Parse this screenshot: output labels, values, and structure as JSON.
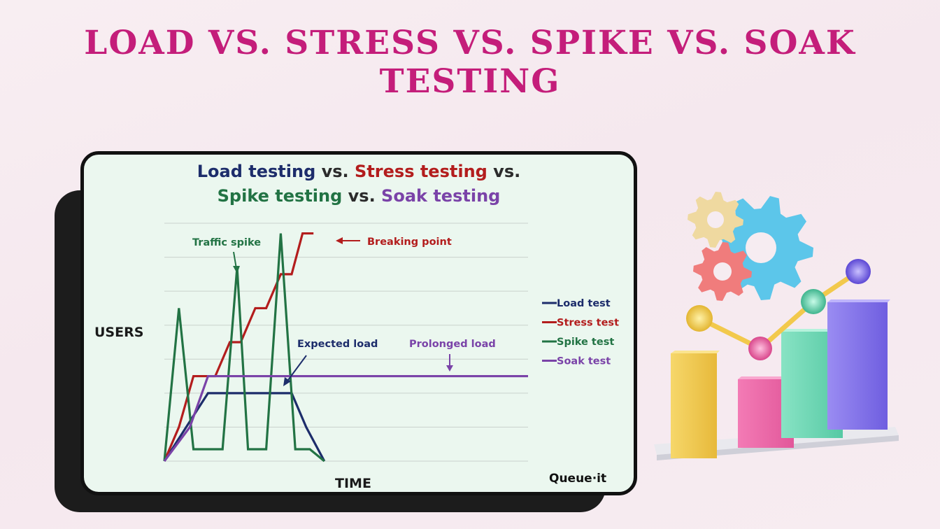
{
  "page": {
    "title": "LOAD VS. STRESS VS. SPIKE VS. SOAK TESTING"
  },
  "card": {
    "title_line1": [
      {
        "text": "Load testing",
        "color": "#1d2d6b"
      },
      {
        "text": " vs. ",
        "color": "#2b2b2b"
      },
      {
        "text": "Stress testing",
        "color": "#b31d1d"
      },
      {
        "text": " vs.",
        "color": "#2b2b2b"
      }
    ],
    "title_line2": [
      {
        "text": "Spike testing",
        "color": "#227344"
      },
      {
        "text": " vs. ",
        "color": "#2b2b2b"
      },
      {
        "text": "Soak testing",
        "color": "#7a43a8"
      }
    ],
    "brand": "Queue·it"
  },
  "chart_data": {
    "type": "line",
    "xlabel": "TIME",
    "ylabel": "USERS",
    "xlim": [
      0,
      100
    ],
    "ylim": [
      0,
      7
    ],
    "grid": true,
    "legend_position": "right",
    "series": [
      {
        "name": "Load test",
        "color": "#1d2d6b",
        "points": [
          [
            0,
            0
          ],
          [
            12,
            2
          ],
          [
            35,
            2
          ],
          [
            39,
            1
          ],
          [
            44,
            0
          ]
        ]
      },
      {
        "name": "Stress test",
        "color": "#b31d1d",
        "points": [
          [
            0,
            0
          ],
          [
            4,
            1
          ],
          [
            8,
            2.5
          ],
          [
            14,
            2.5
          ],
          [
            18,
            3.5
          ],
          [
            21,
            3.5
          ],
          [
            25,
            4.5
          ],
          [
            28,
            4.5
          ],
          [
            32,
            5.5
          ],
          [
            35,
            5.5
          ],
          [
            38,
            6.7
          ],
          [
            41,
            6.7
          ]
        ]
      },
      {
        "name": "Spike test",
        "color": "#227344",
        "points": [
          [
            0,
            0
          ],
          [
            4,
            4.5
          ],
          [
            8,
            0.35
          ],
          [
            16,
            0.35
          ],
          [
            20,
            5.7
          ],
          [
            23,
            0.35
          ],
          [
            28,
            0.35
          ],
          [
            32,
            6.7
          ],
          [
            36,
            0.35
          ],
          [
            40,
            0.35
          ],
          [
            44,
            0
          ]
        ]
      },
      {
        "name": "Soak test",
        "color": "#7a43a8",
        "points": [
          [
            0,
            0
          ],
          [
            7,
            1
          ],
          [
            12,
            2.5
          ],
          [
            100,
            2.5
          ]
        ]
      }
    ],
    "annotations": [
      {
        "text": "Traffic spike",
        "color": "#227344",
        "target": [
          20,
          5.7
        ]
      },
      {
        "text": "Breaking point",
        "color": "#b31d1d",
        "target": [
          41,
          6.7
        ]
      },
      {
        "text": "Expected load",
        "color": "#1d2d6b",
        "target": [
          32,
          2.2
        ]
      },
      {
        "text": "Prolonged load",
        "color": "#7a43a8",
        "target": [
          78,
          2.6
        ]
      }
    ]
  }
}
